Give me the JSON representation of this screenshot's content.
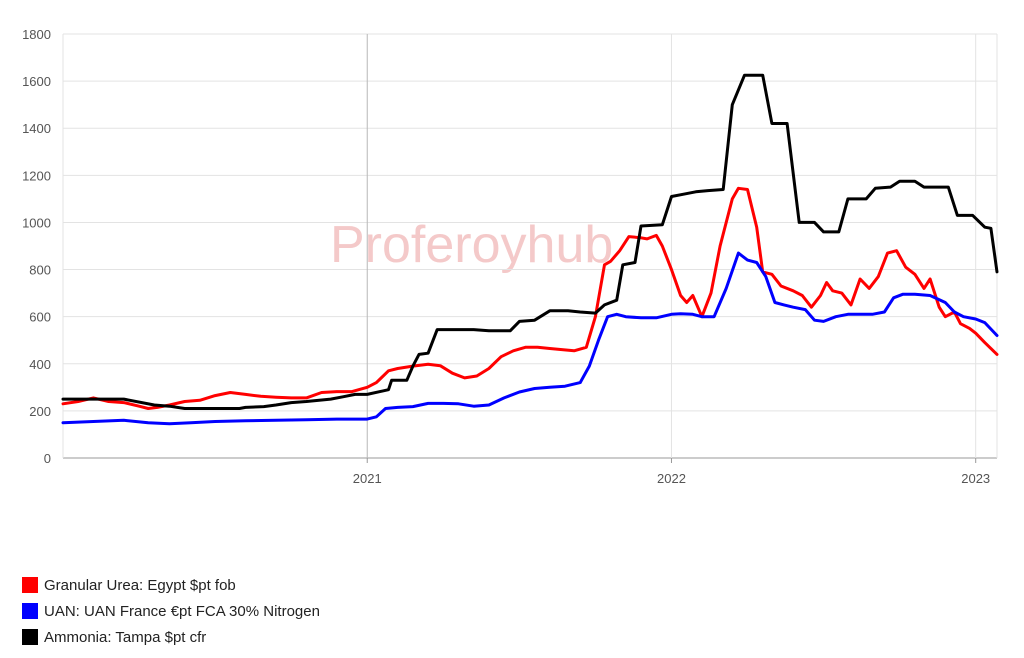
{
  "chart_data": {
    "type": "line",
    "watermark": "Proferoyhub",
    "ylim": [
      0,
      1800
    ],
    "yticks": [
      0,
      200,
      400,
      600,
      800,
      1000,
      1200,
      1400,
      1600,
      1800
    ],
    "xlim": [
      2020.0,
      2023.07
    ],
    "xticks": [
      {
        "x": 2021,
        "label": "2021"
      },
      {
        "x": 2022,
        "label": "2022"
      },
      {
        "x": 2023,
        "label": "2023"
      }
    ],
    "xgrid_strong": [
      2021
    ],
    "series": [
      {
        "name": "Granular Urea: Egypt $pt fob",
        "color": "#ff0000",
        "points": [
          [
            2020.0,
            230
          ],
          [
            2020.05,
            240
          ],
          [
            2020.1,
            255
          ],
          [
            2020.15,
            240
          ],
          [
            2020.2,
            235
          ],
          [
            2020.25,
            220
          ],
          [
            2020.28,
            210
          ],
          [
            2020.31,
            215
          ],
          [
            2020.35,
            225
          ],
          [
            2020.4,
            240
          ],
          [
            2020.45,
            245
          ],
          [
            2020.5,
            265
          ],
          [
            2020.55,
            278
          ],
          [
            2020.6,
            270
          ],
          [
            2020.65,
            262
          ],
          [
            2020.7,
            258
          ],
          [
            2020.75,
            255
          ],
          [
            2020.8,
            255
          ],
          [
            2020.85,
            278
          ],
          [
            2020.9,
            282
          ],
          [
            2020.95,
            282
          ],
          [
            2021.0,
            300
          ],
          [
            2021.03,
            320
          ],
          [
            2021.07,
            370
          ],
          [
            2021.1,
            380
          ],
          [
            2021.15,
            390
          ],
          [
            2021.2,
            398
          ],
          [
            2021.24,
            392
          ],
          [
            2021.28,
            360
          ],
          [
            2021.32,
            340
          ],
          [
            2021.36,
            348
          ],
          [
            2021.4,
            380
          ],
          [
            2021.44,
            430
          ],
          [
            2021.48,
            455
          ],
          [
            2021.52,
            470
          ],
          [
            2021.56,
            470
          ],
          [
            2021.6,
            465
          ],
          [
            2021.64,
            460
          ],
          [
            2021.68,
            455
          ],
          [
            2021.72,
            470
          ],
          [
            2021.75,
            600
          ],
          [
            2021.78,
            820
          ],
          [
            2021.8,
            835
          ],
          [
            2021.83,
            880
          ],
          [
            2021.86,
            940
          ],
          [
            2021.9,
            935
          ],
          [
            2021.92,
            930
          ],
          [
            2021.95,
            945
          ],
          [
            2021.97,
            900
          ],
          [
            2022.0,
            800
          ],
          [
            2022.03,
            690
          ],
          [
            2022.05,
            660
          ],
          [
            2022.07,
            690
          ],
          [
            2022.1,
            600
          ],
          [
            2022.13,
            700
          ],
          [
            2022.16,
            900
          ],
          [
            2022.2,
            1100
          ],
          [
            2022.22,
            1145
          ],
          [
            2022.25,
            1140
          ],
          [
            2022.28,
            980
          ],
          [
            2022.3,
            790
          ],
          [
            2022.33,
            780
          ],
          [
            2022.36,
            730
          ],
          [
            2022.4,
            710
          ],
          [
            2022.43,
            690
          ],
          [
            2022.46,
            640
          ],
          [
            2022.49,
            690
          ],
          [
            2022.51,
            745
          ],
          [
            2022.53,
            710
          ],
          [
            2022.56,
            700
          ],
          [
            2022.59,
            650
          ],
          [
            2022.62,
            760
          ],
          [
            2022.65,
            720
          ],
          [
            2022.68,
            770
          ],
          [
            2022.71,
            870
          ],
          [
            2022.74,
            880
          ],
          [
            2022.77,
            810
          ],
          [
            2022.8,
            780
          ],
          [
            2022.83,
            720
          ],
          [
            2022.85,
            760
          ],
          [
            2022.88,
            640
          ],
          [
            2022.9,
            600
          ],
          [
            2022.93,
            620
          ],
          [
            2022.95,
            570
          ],
          [
            2022.98,
            550
          ],
          [
            2023.0,
            530
          ],
          [
            2023.03,
            490
          ],
          [
            2023.07,
            440
          ]
        ]
      },
      {
        "name": "UAN: UAN France €pt FCA 30% Nitrogen",
        "color": "#0000ff",
        "points": [
          [
            2020.0,
            150
          ],
          [
            2020.1,
            155
          ],
          [
            2020.2,
            160
          ],
          [
            2020.28,
            150
          ],
          [
            2020.35,
            145
          ],
          [
            2020.42,
            150
          ],
          [
            2020.5,
            155
          ],
          [
            2020.6,
            158
          ],
          [
            2020.7,
            160
          ],
          [
            2020.8,
            162
          ],
          [
            2020.9,
            165
          ],
          [
            2021.0,
            165
          ],
          [
            2021.03,
            175
          ],
          [
            2021.06,
            210
          ],
          [
            2021.1,
            215
          ],
          [
            2021.15,
            218
          ],
          [
            2021.2,
            232
          ],
          [
            2021.25,
            232
          ],
          [
            2021.3,
            230
          ],
          [
            2021.35,
            220
          ],
          [
            2021.4,
            225
          ],
          [
            2021.45,
            255
          ],
          [
            2021.5,
            280
          ],
          [
            2021.55,
            295
          ],
          [
            2021.6,
            300
          ],
          [
            2021.65,
            305
          ],
          [
            2021.7,
            320
          ],
          [
            2021.73,
            390
          ],
          [
            2021.76,
            500
          ],
          [
            2021.79,
            600
          ],
          [
            2021.82,
            610
          ],
          [
            2021.85,
            600
          ],
          [
            2021.9,
            595
          ],
          [
            2021.95,
            595
          ],
          [
            2022.0,
            610
          ],
          [
            2022.03,
            612
          ],
          [
            2022.07,
            610
          ],
          [
            2022.1,
            600
          ],
          [
            2022.14,
            600
          ],
          [
            2022.18,
            720
          ],
          [
            2022.22,
            870
          ],
          [
            2022.25,
            840
          ],
          [
            2022.28,
            830
          ],
          [
            2022.31,
            770
          ],
          [
            2022.34,
            660
          ],
          [
            2022.37,
            650
          ],
          [
            2022.4,
            640
          ],
          [
            2022.44,
            630
          ],
          [
            2022.47,
            585
          ],
          [
            2022.5,
            580
          ],
          [
            2022.54,
            600
          ],
          [
            2022.58,
            610
          ],
          [
            2022.62,
            610
          ],
          [
            2022.66,
            610
          ],
          [
            2022.7,
            620
          ],
          [
            2022.73,
            680
          ],
          [
            2022.76,
            695
          ],
          [
            2022.8,
            695
          ],
          [
            2022.85,
            690
          ],
          [
            2022.9,
            660
          ],
          [
            2022.93,
            620
          ],
          [
            2022.96,
            600
          ],
          [
            2023.0,
            590
          ],
          [
            2023.03,
            575
          ],
          [
            2023.07,
            520
          ]
        ]
      },
      {
        "name": "Ammonia: Tampa $pt cfr",
        "color": "#000000",
        "points": [
          [
            2020.0,
            250
          ],
          [
            2020.1,
            250
          ],
          [
            2020.2,
            250
          ],
          [
            2020.3,
            225
          ],
          [
            2020.35,
            220
          ],
          [
            2020.4,
            210
          ],
          [
            2020.5,
            210
          ],
          [
            2020.58,
            210
          ],
          [
            2020.6,
            215
          ],
          [
            2020.66,
            218
          ],
          [
            2020.7,
            225
          ],
          [
            2020.75,
            235
          ],
          [
            2020.8,
            240
          ],
          [
            2020.88,
            250
          ],
          [
            2020.92,
            260
          ],
          [
            2020.96,
            270
          ],
          [
            2021.0,
            270
          ],
          [
            2021.07,
            290
          ],
          [
            2021.08,
            330
          ],
          [
            2021.13,
            330
          ],
          [
            2021.15,
            390
          ],
          [
            2021.17,
            440
          ],
          [
            2021.2,
            445
          ],
          [
            2021.23,
            545
          ],
          [
            2021.3,
            545
          ],
          [
            2021.35,
            545
          ],
          [
            2021.4,
            540
          ],
          [
            2021.47,
            540
          ],
          [
            2021.5,
            580
          ],
          [
            2021.55,
            585
          ],
          [
            2021.6,
            625
          ],
          [
            2021.66,
            625
          ],
          [
            2021.7,
            620
          ],
          [
            2021.75,
            615
          ],
          [
            2021.78,
            650
          ],
          [
            2021.82,
            670
          ],
          [
            2021.84,
            820
          ],
          [
            2021.88,
            830
          ],
          [
            2021.9,
            985
          ],
          [
            2021.97,
            990
          ],
          [
            2022.0,
            1110
          ],
          [
            2022.04,
            1120
          ],
          [
            2022.08,
            1130
          ],
          [
            2022.12,
            1135
          ],
          [
            2022.17,
            1140
          ],
          [
            2022.2,
            1500
          ],
          [
            2022.24,
            1625
          ],
          [
            2022.3,
            1625
          ],
          [
            2022.33,
            1420
          ],
          [
            2022.38,
            1420
          ],
          [
            2022.42,
            1000
          ],
          [
            2022.47,
            1000
          ],
          [
            2022.5,
            960
          ],
          [
            2022.55,
            960
          ],
          [
            2022.58,
            1100
          ],
          [
            2022.64,
            1100
          ],
          [
            2022.67,
            1145
          ],
          [
            2022.72,
            1150
          ],
          [
            2022.75,
            1175
          ],
          [
            2022.8,
            1175
          ],
          [
            2022.83,
            1150
          ],
          [
            2022.91,
            1150
          ],
          [
            2022.94,
            1030
          ],
          [
            2022.99,
            1030
          ],
          [
            2023.03,
            980
          ],
          [
            2023.05,
            975
          ],
          [
            2023.07,
            790
          ]
        ]
      }
    ]
  }
}
